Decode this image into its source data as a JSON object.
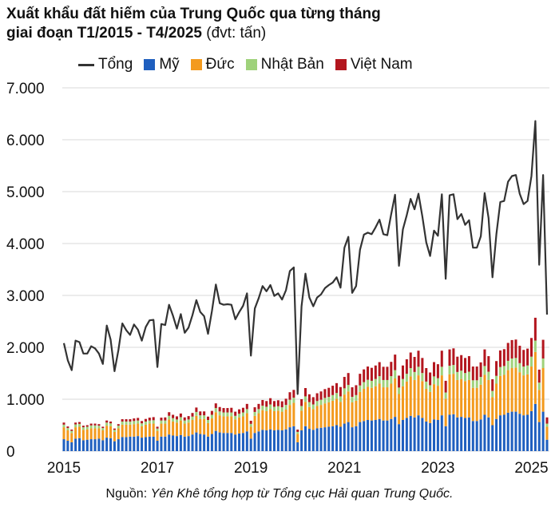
{
  "title": {
    "line1": "Xuất khẩu đất hiếm của Trung Quốc qua từng tháng",
    "line2": "giai đoạn T1/2015 - T4/2025",
    "unit": "(đvt: tấn)"
  },
  "source": {
    "label": "Nguồn:",
    "text": "Yên Khê tổng hợp từ Tổng cục Hải quan Trung Quốc."
  },
  "colors": {
    "total": "#333333",
    "us": "#1f5fbf",
    "de": "#f39a1e",
    "jp": "#9fd27b",
    "vn": "#b3161e",
    "grid": "#d9d9d9"
  },
  "chart_data": {
    "type": "bar",
    "subtype": "stacked bar with line overlay",
    "period": "2015-01 to 2025-04",
    "frequency": "monthly",
    "ylim": [
      0,
      7000
    ],
    "yticks": [
      "0",
      "1.000",
      "2.000",
      "3.000",
      "4.000",
      "5.000",
      "6.000",
      "7.000"
    ],
    "xticks": [
      "2015",
      "2017",
      "2019",
      "2021",
      "2023",
      "2025"
    ],
    "grid": true,
    "legend": "top",
    "series": [
      {
        "name": "Tổng",
        "kind": "line",
        "values": [
          2080,
          1750,
          1560,
          2130,
          2100,
          1880,
          1880,
          2020,
          1980,
          1880,
          1680,
          2420,
          2150,
          1540,
          1950,
          2460,
          2330,
          2240,
          2440,
          2340,
          2130,
          2390,
          2520,
          2530,
          1620,
          2450,
          2430,
          2820,
          2610,
          2360,
          2640,
          2280,
          2380,
          2620,
          2910,
          2680,
          2600,
          2260,
          2700,
          3210,
          2850,
          2820,
          2830,
          2820,
          2540,
          2680,
          2800,
          3040,
          1840,
          2750,
          2950,
          3180,
          3080,
          3200,
          2990,
          3040,
          2920,
          3100,
          3470,
          3540,
          1100,
          2790,
          3420,
          2960,
          2790,
          2960,
          3020,
          3140,
          3200,
          3250,
          3350,
          3150,
          3920,
          4130,
          3050,
          3180,
          3880,
          4170,
          4210,
          4180,
          4310,
          4460,
          4180,
          4160,
          4560,
          4940,
          3570,
          4270,
          4550,
          4860,
          4660,
          4960,
          4520,
          4020,
          3760,
          4250,
          4150,
          4950,
          3320,
          4930,
          4950,
          4470,
          4570,
          4360,
          4450,
          3920,
          3920,
          4140,
          4970,
          4490,
          3350,
          4180,
          4800,
          4820,
          5190,
          5300,
          5320,
          4960,
          4760,
          4820,
          5300,
          6360,
          3590,
          5320,
          2630
        ]
      },
      {
        "name": "Mỹ",
        "kind": "bar",
        "values": [
          230,
          200,
          170,
          240,
          250,
          210,
          220,
          230,
          230,
          240,
          210,
          260,
          250,
          190,
          230,
          270,
          270,
          280,
          280,
          290,
          260,
          270,
          280,
          280,
          200,
          280,
          280,
          320,
          300,
          290,
          310,
          280,
          290,
          320,
          360,
          330,
          320,
          280,
          330,
          390,
          360,
          350,
          350,
          350,
          320,
          340,
          350,
          380,
          240,
          350,
          380,
          410,
          400,
          420,
          400,
          410,
          400,
          420,
          460,
          480,
          170,
          400,
          480,
          430,
          410,
          440,
          450,
          460,
          470,
          480,
          500,
          470,
          530,
          560,
          460,
          480,
          560,
          580,
          600,
          590,
          600,
          620,
          590,
          590,
          620,
          660,
          520,
          600,
          640,
          680,
          650,
          690,
          640,
          570,
          540,
          610,
          600,
          690,
          480,
          700,
          710,
          650,
          660,
          640,
          650,
          580,
          580,
          610,
          700,
          650,
          500,
          620,
          690,
          700,
          740,
          760,
          760,
          720,
          690,
          700,
          770,
          910,
          560,
          760,
          220
        ]
      },
      {
        "name": "Đức",
        "kind": "bar",
        "values": [
          230,
          200,
          180,
          220,
          220,
          200,
          200,
          210,
          210,
          200,
          190,
          230,
          230,
          180,
          210,
          240,
          240,
          230,
          240,
          240,
          220,
          240,
          250,
          250,
          190,
          250,
          250,
          290,
          270,
          260,
          280,
          250,
          260,
          280,
          320,
          290,
          300,
          260,
          300,
          360,
          330,
          320,
          320,
          320,
          290,
          310,
          320,
          350,
          230,
          330,
          350,
          380,
          370,
          390,
          370,
          370,
          360,
          380,
          430,
          450,
          160,
          380,
          470,
          420,
          400,
          430,
          440,
          460,
          470,
          490,
          510,
          480,
          560,
          590,
          480,
          490,
          580,
          620,
          640,
          630,
          650,
          680,
          640,
          640,
          680,
          740,
          580,
          650,
          700,
          760,
          720,
          770,
          710,
          630,
          600,
          680,
          660,
          770,
          530,
          780,
          780,
          720,
          730,
          710,
          720,
          640,
          640,
          670,
          770,
          720,
          540,
          680,
          760,
          770,
          820,
          840,
          850,
          800,
          770,
          780,
          860,
          1000,
          620,
          840,
          250
        ]
      },
      {
        "name": "Nhật Bản",
        "kind": "bar",
        "values": [
          50,
          45,
          40,
          55,
          55,
          50,
          50,
          55,
          55,
          50,
          45,
          60,
          55,
          40,
          50,
          60,
          60,
          60,
          60,
          60,
          55,
          60,
          60,
          65,
          45,
          60,
          60,
          70,
          65,
          60,
          65,
          60,
          60,
          65,
          75,
          70,
          70,
          60,
          70,
          80,
          75,
          75,
          75,
          75,
          70,
          70,
          75,
          80,
          55,
          75,
          80,
          85,
          85,
          90,
          85,
          85,
          85,
          90,
          100,
          100,
          40,
          90,
          105,
          95,
          90,
          95,
          100,
          105,
          105,
          110,
          110,
          105,
          120,
          125,
          105,
          110,
          125,
          130,
          135,
          135,
          140,
          145,
          140,
          140,
          145,
          160,
          125,
          140,
          150,
          160,
          155,
          165,
          155,
          140,
          130,
          150,
          145,
          165,
          120,
          165,
          170,
          155,
          160,
          155,
          160,
          145,
          145,
          150,
          170,
          160,
          120,
          150,
          170,
          170,
          180,
          185,
          185,
          175,
          170,
          170,
          190,
          220,
          140,
          185,
          60
        ]
      },
      {
        "name": "Việt Nam",
        "kind": "bar",
        "values": [
          40,
          30,
          25,
          35,
          35,
          30,
          30,
          35,
          35,
          30,
          25,
          40,
          35,
          25,
          30,
          45,
          45,
          45,
          50,
          50,
          45,
          50,
          55,
          60,
          35,
          55,
          60,
          70,
          65,
          60,
          70,
          60,
          65,
          70,
          85,
          75,
          75,
          65,
          75,
          90,
          85,
          85,
          85,
          90,
          80,
          85,
          90,
          100,
          60,
          90,
          100,
          110,
          110,
          120,
          110,
          115,
          115,
          120,
          145,
          150,
          45,
          130,
          160,
          150,
          140,
          150,
          160,
          170,
          175,
          180,
          190,
          180,
          220,
          230,
          185,
          190,
          225,
          245,
          255,
          250,
          260,
          270,
          255,
          255,
          275,
          300,
          230,
          260,
          280,
          300,
          290,
          310,
          290,
          260,
          245,
          275,
          270,
          310,
          225,
          315,
          320,
          295,
          300,
          290,
          300,
          265,
          265,
          280,
          320,
          300,
          225,
          285,
          320,
          325,
          345,
          355,
          355,
          335,
          320,
          325,
          360,
          440,
          250,
          360,
          120
        ]
      }
    ]
  }
}
